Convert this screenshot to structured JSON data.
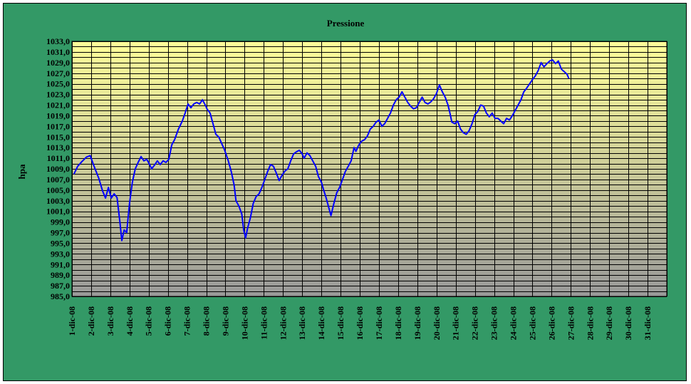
{
  "chart_data": {
    "type": "line",
    "title": "Pressione",
    "xlabel": "",
    "ylabel": "hpa",
    "ylim": [
      985,
      1033
    ],
    "y_ticks": [
      "985,0",
      "987,0",
      "989,0",
      "991,0",
      "993,0",
      "995,0",
      "997,0",
      "999,0",
      "1001,0",
      "1003,0",
      "1005,0",
      "1007,0",
      "1009,0",
      "1011,0",
      "1013,0",
      "1015,0",
      "1017,0",
      "1019,0",
      "1021,0",
      "1023,0",
      "1025,0",
      "1027,0",
      "1029,0",
      "1031,0",
      "1033,0"
    ],
    "categories": [
      "1-dic-08",
      "2-dic-08",
      "3-dic-08",
      "4-dic-08",
      "5-dic-08",
      "6-dic-08",
      "7-dic-08",
      "8-dic-08",
      "9-dic-08",
      "10-dic-08",
      "11-dic-08",
      "12-dic-08",
      "13-dic-08",
      "14-dic-08",
      "15-dic-08",
      "16-dic-08",
      "17-dic-08",
      "18-dic-08",
      "19-dic-08",
      "20-dic-08",
      "21-dic-08",
      "22-dic-08",
      "23-dic-08",
      "24-dic-08",
      "25-dic-08",
      "26-dic-08",
      "27-dic-08",
      "28-dic-08",
      "29-dic-08",
      "30-dic-08",
      "31-dic-08"
    ],
    "grid": true,
    "legend": "none",
    "series": [
      {
        "color": "#0000ff",
        "points": [
          [
            0.1,
            1008.0
          ],
          [
            0.3,
            1009.5
          ],
          [
            0.5,
            1010.3
          ],
          [
            0.75,
            1011.2
          ],
          [
            0.95,
            1011.5
          ],
          [
            1.15,
            1009.5
          ],
          [
            1.4,
            1007.2
          ],
          [
            1.6,
            1004.8
          ],
          [
            1.75,
            1003.5
          ],
          [
            1.9,
            1005.5
          ],
          [
            2.05,
            1003.5
          ],
          [
            2.2,
            1004.3
          ],
          [
            2.35,
            1003.6
          ],
          [
            2.5,
            999.0
          ],
          [
            2.6,
            995.5
          ],
          [
            2.72,
            997.5
          ],
          [
            2.85,
            997.0
          ],
          [
            3.0,
            1002.5
          ],
          [
            3.15,
            1006.5
          ],
          [
            3.3,
            1009.0
          ],
          [
            3.45,
            1010.2
          ],
          [
            3.6,
            1011.3
          ],
          [
            3.75,
            1010.5
          ],
          [
            3.9,
            1010.8
          ],
          [
            4.05,
            1009.8
          ],
          [
            4.15,
            1009.0
          ],
          [
            4.3,
            1009.7
          ],
          [
            4.45,
            1010.5
          ],
          [
            4.6,
            1009.8
          ],
          [
            4.75,
            1010.5
          ],
          [
            4.9,
            1010.2
          ],
          [
            5.05,
            1010.8
          ],
          [
            5.2,
            1013.5
          ],
          [
            5.35,
            1014.5
          ],
          [
            5.55,
            1016.5
          ],
          [
            5.75,
            1018.0
          ],
          [
            5.9,
            1019.5
          ],
          [
            6.05,
            1021.2
          ],
          [
            6.2,
            1020.5
          ],
          [
            6.35,
            1021.2
          ],
          [
            6.5,
            1021.5
          ],
          [
            6.65,
            1021.2
          ],
          [
            6.8,
            1022.0
          ],
          [
            6.95,
            1021.0
          ],
          [
            7.05,
            1020.2
          ],
          [
            7.2,
            1019.5
          ],
          [
            7.35,
            1017.5
          ],
          [
            7.5,
            1015.5
          ],
          [
            7.65,
            1015.0
          ],
          [
            7.8,
            1013.8
          ],
          [
            7.95,
            1012.6
          ],
          [
            8.15,
            1010.5
          ],
          [
            8.3,
            1008.5
          ],
          [
            8.45,
            1006.0
          ],
          [
            8.55,
            1003.0
          ],
          [
            8.7,
            1002.0
          ],
          [
            8.85,
            1000.5
          ],
          [
            8.95,
            997.5
          ],
          [
            9.05,
            996.0
          ],
          [
            9.15,
            997.8
          ],
          [
            9.3,
            999.8
          ],
          [
            9.45,
            1002.5
          ],
          [
            9.6,
            1003.8
          ],
          [
            9.75,
            1004.3
          ],
          [
            9.9,
            1005.5
          ],
          [
            10.05,
            1007.0
          ],
          [
            10.2,
            1008.5
          ],
          [
            10.35,
            1009.8
          ],
          [
            10.5,
            1009.5
          ],
          [
            10.65,
            1008.2
          ],
          [
            10.8,
            1006.8
          ],
          [
            10.95,
            1007.8
          ],
          [
            11.1,
            1008.6
          ],
          [
            11.25,
            1009.0
          ],
          [
            11.4,
            1010.5
          ],
          [
            11.55,
            1011.8
          ],
          [
            11.7,
            1012.2
          ],
          [
            11.85,
            1012.5
          ],
          [
            12.0,
            1011.8
          ],
          [
            12.1,
            1011.0
          ],
          [
            12.25,
            1012.0
          ],
          [
            12.4,
            1011.5
          ],
          [
            12.55,
            1010.5
          ],
          [
            12.7,
            1009.5
          ],
          [
            12.85,
            1007.5
          ],
          [
            13.0,
            1006.5
          ],
          [
            13.1,
            1005.2
          ],
          [
            13.25,
            1003.5
          ],
          [
            13.4,
            1001.5
          ],
          [
            13.5,
            1000.2
          ],
          [
            13.65,
            1002.5
          ],
          [
            13.8,
            1004.5
          ],
          [
            13.95,
            1005.5
          ],
          [
            14.1,
            1007.0
          ],
          [
            14.25,
            1008.5
          ],
          [
            14.4,
            1009.5
          ],
          [
            14.55,
            1010.5
          ],
          [
            14.7,
            1013.0
          ],
          [
            14.8,
            1012.3
          ],
          [
            14.95,
            1013.5
          ],
          [
            15.1,
            1014.2
          ],
          [
            15.25,
            1014.5
          ],
          [
            15.4,
            1015.2
          ],
          [
            15.55,
            1016.5
          ],
          [
            15.7,
            1017.0
          ],
          [
            15.85,
            1017.8
          ],
          [
            16.0,
            1018.2
          ],
          [
            16.15,
            1017.0
          ],
          [
            16.3,
            1017.5
          ],
          [
            16.45,
            1018.5
          ],
          [
            16.6,
            1019.5
          ],
          [
            16.75,
            1021.0
          ],
          [
            16.9,
            1022.0
          ],
          [
            17.05,
            1022.5
          ],
          [
            17.2,
            1023.5
          ],
          [
            17.35,
            1022.5
          ],
          [
            17.5,
            1021.5
          ],
          [
            17.65,
            1020.8
          ],
          [
            17.8,
            1020.3
          ],
          [
            17.95,
            1020.5
          ],
          [
            18.1,
            1021.5
          ],
          [
            18.25,
            1022.5
          ],
          [
            18.4,
            1021.5
          ],
          [
            18.55,
            1021.2
          ],
          [
            18.7,
            1021.6
          ],
          [
            18.85,
            1022.2
          ],
          [
            19.0,
            1023.2
          ],
          [
            19.15,
            1024.8
          ],
          [
            19.3,
            1023.5
          ],
          [
            19.45,
            1022.5
          ],
          [
            19.6,
            1021.0
          ],
          [
            19.7,
            1019.5
          ],
          [
            19.8,
            1017.8
          ],
          [
            19.95,
            1017.5
          ],
          [
            20.1,
            1018.0
          ],
          [
            20.25,
            1016.5
          ],
          [
            20.4,
            1015.8
          ],
          [
            20.55,
            1015.5
          ],
          [
            20.7,
            1016.2
          ],
          [
            20.85,
            1017.5
          ],
          [
            21.0,
            1019.2
          ],
          [
            21.15,
            1019.8
          ],
          [
            21.3,
            1021.0
          ],
          [
            21.45,
            1020.8
          ],
          [
            21.6,
            1019.5
          ],
          [
            21.75,
            1018.8
          ],
          [
            21.9,
            1019.5
          ],
          [
            22.05,
            1018.5
          ],
          [
            22.2,
            1018.5
          ],
          [
            22.35,
            1018.0
          ],
          [
            22.5,
            1017.5
          ],
          [
            22.65,
            1018.5
          ],
          [
            22.8,
            1018.2
          ],
          [
            22.95,
            1019.0
          ],
          [
            23.1,
            1020.0
          ],
          [
            23.25,
            1021.0
          ],
          [
            23.4,
            1022.0
          ],
          [
            23.55,
            1023.5
          ],
          [
            23.7,
            1024.2
          ],
          [
            23.85,
            1025.0
          ],
          [
            24.0,
            1025.8
          ],
          [
            24.15,
            1026.5
          ],
          [
            24.3,
            1027.5
          ],
          [
            24.45,
            1029.0
          ],
          [
            24.6,
            1028.2
          ],
          [
            24.75,
            1028.8
          ],
          [
            24.9,
            1029.3
          ],
          [
            25.05,
            1029.5
          ],
          [
            25.2,
            1028.8
          ],
          [
            25.35,
            1029.3
          ],
          [
            25.5,
            1027.8
          ],
          [
            25.65,
            1027.3
          ],
          [
            25.8,
            1026.8
          ],
          [
            25.9,
            1026.0
          ]
        ]
      }
    ]
  }
}
